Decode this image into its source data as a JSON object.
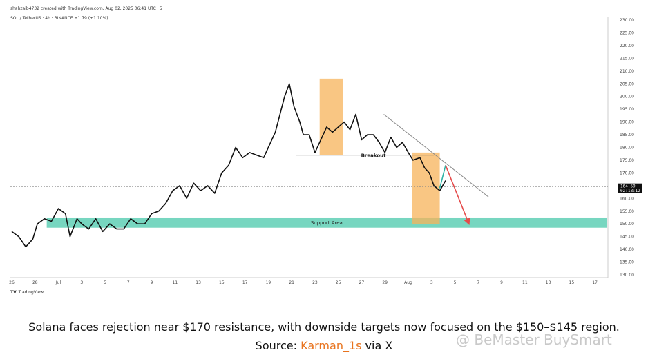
{
  "header": {
    "line1": "shahzaib4732 created with TradingView.com, Aug 02, 2025 06:41 UTC+5",
    "line2": "SOL / TetherUS · 4h · BINANCE  +1.79 (+1.10%)"
  },
  "footer_logo": {
    "mark": "TV",
    "text": "TradingView"
  },
  "caption": {
    "line1": "Solana faces rejection near $170 resistance, with downside targets now focused on the $150–$145 region.",
    "source_prefix": "Source: ",
    "source_link": "Karman_1s",
    "source_suffix": " via X"
  },
  "watermark": "@ BeMaster BuySmart",
  "colors": {
    "price_line": "#111111",
    "support_band": "#5fcfb5",
    "highlight_box": "#f7b35a",
    "trendline": "#888888",
    "bounce_arrow": "#2fb3a6",
    "target_arrow": "#e54b4b",
    "current_price_badge": "#111111"
  },
  "chart_data": {
    "type": "line",
    "title": "",
    "xlabel": "",
    "ylabel": "",
    "ylim": [
      130,
      230
    ],
    "y_ticks": [
      "130.00",
      "135.00",
      "140.00",
      "145.00",
      "150.00",
      "155.00",
      "160.00",
      "165.00",
      "170.00",
      "175.00",
      "180.00",
      "185.00",
      "190.00",
      "195.00",
      "200.00",
      "205.00",
      "210.00",
      "215.00",
      "220.00",
      "225.00",
      "230.00"
    ],
    "x_ticks": [
      "26",
      "28",
      "Jul",
      "3",
      "5",
      "7",
      "9",
      "11",
      "13",
      "15",
      "17",
      "19",
      "21",
      "23",
      "25",
      "27",
      "29",
      "Aug",
      "3",
      "5",
      "7",
      "9",
      "11",
      "13",
      "15",
      "17"
    ],
    "x_tick_index": [
      0,
      2,
      4,
      6,
      8,
      10,
      12,
      14,
      16,
      18,
      20,
      22,
      24,
      26,
      28,
      30,
      32,
      34,
      36,
      38,
      40,
      42,
      44,
      46,
      48,
      50
    ],
    "current_price": {
      "label": "164.50",
      "timer": "02:18:12",
      "value": 164.5
    },
    "series": [
      {
        "x": [
          0,
          0.6,
          1.2,
          1.8,
          2.2,
          2.8,
          3.4,
          4,
          4.6,
          5,
          5.6,
          6,
          6.6,
          7.2,
          7.8,
          8.4,
          9,
          9.6,
          10.2,
          10.8,
          11.4,
          12,
          12.6,
          13.2,
          13.8,
          14.4,
          15,
          15.6,
          16.2,
          16.8,
          17.4,
          18,
          18.6,
          19.2,
          19.8,
          20.4,
          21,
          21.6,
          22,
          22.6,
          23,
          23.4,
          23.8,
          24.2,
          24.7,
          25,
          25.5,
          26,
          26.5,
          27,
          27.5,
          28,
          28.5,
          29,
          29.5,
          30,
          30.5,
          31,
          31.5,
          32,
          32.5,
          33,
          33.5,
          34,
          34.4,
          35,
          35.4,
          35.8,
          36.2,
          36.7,
          37.2
        ],
        "values": [
          147,
          145,
          141,
          144,
          150,
          152,
          151,
          156,
          154,
          145,
          152,
          150,
          148,
          152,
          147,
          150,
          148,
          148,
          152,
          150,
          150,
          154,
          155,
          158,
          163,
          165,
          160,
          166,
          163,
          165,
          162,
          170,
          173,
          180,
          176,
          178,
          177,
          176,
          180,
          186,
          193,
          200,
          205,
          196,
          190,
          185,
          185,
          178,
          183,
          188,
          186,
          188,
          190,
          187,
          193,
          183,
          185,
          185,
          182,
          178,
          184,
          180,
          182,
          178,
          175,
          176,
          172,
          170,
          165,
          163,
          167
        ]
      }
    ],
    "annotations": [
      {
        "type": "support_zone",
        "label": "Support Area",
        "y_range": [
          148.5,
          152.5
        ],
        "x_range": [
          3,
          51
        ]
      },
      {
        "type": "highlight_box",
        "x_range": [
          26.4,
          28.4
        ],
        "y_range": [
          177,
          207
        ]
      },
      {
        "type": "highlight_box",
        "x_range": [
          34.3,
          36.7
        ],
        "y_range": [
          150,
          178
        ]
      },
      {
        "type": "horizontal_segment",
        "label": "Breakout",
        "x_range": [
          24.4,
          36.2
        ],
        "y": 177
      },
      {
        "type": "trendline",
        "points": [
          [
            31.9,
            193
          ],
          [
            40.9,
            160.5
          ]
        ]
      },
      {
        "type": "bounce_arrow",
        "points": [
          [
            36.7,
            164
          ],
          [
            37.2,
            173
          ]
        ]
      },
      {
        "type": "target_arrow",
        "points": [
          [
            37.2,
            173
          ],
          [
            39.2,
            150
          ]
        ]
      }
    ]
  }
}
